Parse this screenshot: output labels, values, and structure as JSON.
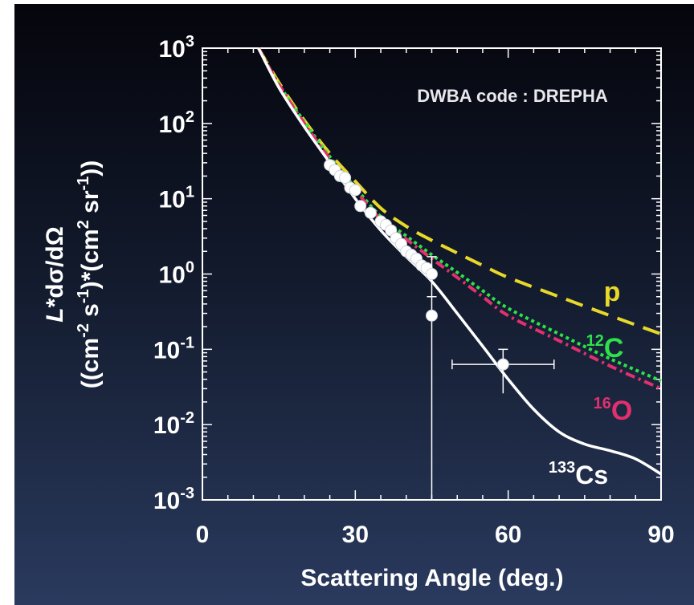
{
  "chart_data": {
    "type": "line",
    "xlabel": "Scattering Angle (deg.)",
    "ylabel_line1": "L*dσ/dΩ",
    "ylabel_line2": "((cm-2 s-1)*(cm2 sr-1))",
    "xlim": [
      0,
      90
    ],
    "ylim_log10": [
      -3,
      3
    ],
    "y_scale": "log",
    "x_ticks": [
      0,
      30,
      60,
      90
    ],
    "y_ticks": [
      {
        "base": "10",
        "exp": "3",
        "log": 3
      },
      {
        "base": "10",
        "exp": "2",
        "log": 2
      },
      {
        "base": "10",
        "exp": "1",
        "log": 1
      },
      {
        "base": "10",
        "exp": "0",
        "log": 0
      },
      {
        "base": "10",
        "exp": "-1",
        "log": -1
      },
      {
        "base": "10",
        "exp": "-2",
        "log": -2
      },
      {
        "base": "10",
        "exp": "-3",
        "log": -3
      }
    ],
    "annotation": "DWBA code : DREPHA",
    "series": [
      {
        "name": "p",
        "label_sup": "",
        "label_main": "p",
        "color": "#e8d82a",
        "style": "dashed",
        "points": [
          [
            11,
            1000
          ],
          [
            15,
            350
          ],
          [
            20,
            110
          ],
          [
            25,
            40
          ],
          [
            30,
            17
          ],
          [
            35,
            7.5
          ],
          [
            40,
            4.3
          ],
          [
            45,
            2.8
          ],
          [
            50,
            1.9
          ],
          [
            55,
            1.3
          ],
          [
            60,
            0.9
          ],
          [
            70,
            0.5
          ],
          [
            80,
            0.28
          ],
          [
            90,
            0.16
          ]
        ]
      },
      {
        "name": "12C",
        "label_sup": "12",
        "label_main": "C",
        "color": "#2ee04a",
        "style": "dotted",
        "points": [
          [
            11,
            1000
          ],
          [
            15,
            330
          ],
          [
            20,
            105
          ],
          [
            25,
            36
          ],
          [
            30,
            14
          ],
          [
            35,
            5.8
          ],
          [
            40,
            3.2
          ],
          [
            45,
            1.8
          ],
          [
            50,
            1.05
          ],
          [
            55,
            0.6
          ],
          [
            60,
            0.35
          ],
          [
            70,
            0.16
          ],
          [
            80,
            0.075
          ],
          [
            90,
            0.038
          ]
        ]
      },
      {
        "name": "16O",
        "label_sup": "16",
        "label_main": "O",
        "color": "#e0306e",
        "style": "dashdot",
        "points": [
          [
            11,
            1000
          ],
          [
            15,
            330
          ],
          [
            20,
            100
          ],
          [
            25,
            34
          ],
          [
            30,
            13
          ],
          [
            35,
            5.3
          ],
          [
            40,
            2.9
          ],
          [
            45,
            1.6
          ],
          [
            50,
            0.9
          ],
          [
            55,
            0.5
          ],
          [
            60,
            0.28
          ],
          [
            70,
            0.13
          ],
          [
            80,
            0.06
          ],
          [
            90,
            0.03
          ]
        ]
      },
      {
        "name": "133Cs",
        "label_sup": "133",
        "label_main": "Cs",
        "color": "#ffffff",
        "style": "solid",
        "points": [
          [
            11,
            1000
          ],
          [
            15,
            300
          ],
          [
            20,
            90
          ],
          [
            25,
            30
          ],
          [
            30,
            10
          ],
          [
            35,
            3.8
          ],
          [
            40,
            1.7
          ],
          [
            45,
            0.8
          ],
          [
            50,
            0.3
          ],
          [
            55,
            0.11
          ],
          [
            60,
            0.04
          ],
          [
            65,
            0.016
          ],
          [
            70,
            0.008
          ],
          [
            75,
            0.0055
          ],
          [
            80,
            0.0045
          ],
          [
            85,
            0.0035
          ],
          [
            90,
            0.0022
          ]
        ]
      }
    ],
    "measured_points": [
      {
        "x": 25,
        "y": 28
      },
      {
        "x": 26,
        "y": 24
      },
      {
        "x": 27,
        "y": 20
      },
      {
        "x": 28,
        "y": 19
      },
      {
        "x": 29,
        "y": 14
      },
      {
        "x": 30,
        "y": 13
      },
      {
        "x": 31,
        "y": 8
      },
      {
        "x": 33,
        "y": 6.5
      },
      {
        "x": 35,
        "y": 5
      },
      {
        "x": 36,
        "y": 4.5
      },
      {
        "x": 37,
        "y": 3.8
      },
      {
        "x": 38,
        "y": 3
      },
      {
        "x": 39,
        "y": 2.5
      },
      {
        "x": 40,
        "y": 2
      },
      {
        "x": 41,
        "y": 1.8
      },
      {
        "x": 42,
        "y": 1.6
      },
      {
        "x": 43,
        "y": 1.3
      },
      {
        "x": 44,
        "y": 1.2
      },
      {
        "x": 45,
        "y": 1.0,
        "yerr_low": 0.5,
        "yerr_high": 1.7
      },
      {
        "x": 45,
        "y": 0.28,
        "yerr_low": 0.001,
        "yerr_high": 0.5
      },
      {
        "x": 59,
        "y": 0.063,
        "xerr": 10,
        "yerr_low": 0.026,
        "yerr_high": 0.1
      }
    ]
  }
}
